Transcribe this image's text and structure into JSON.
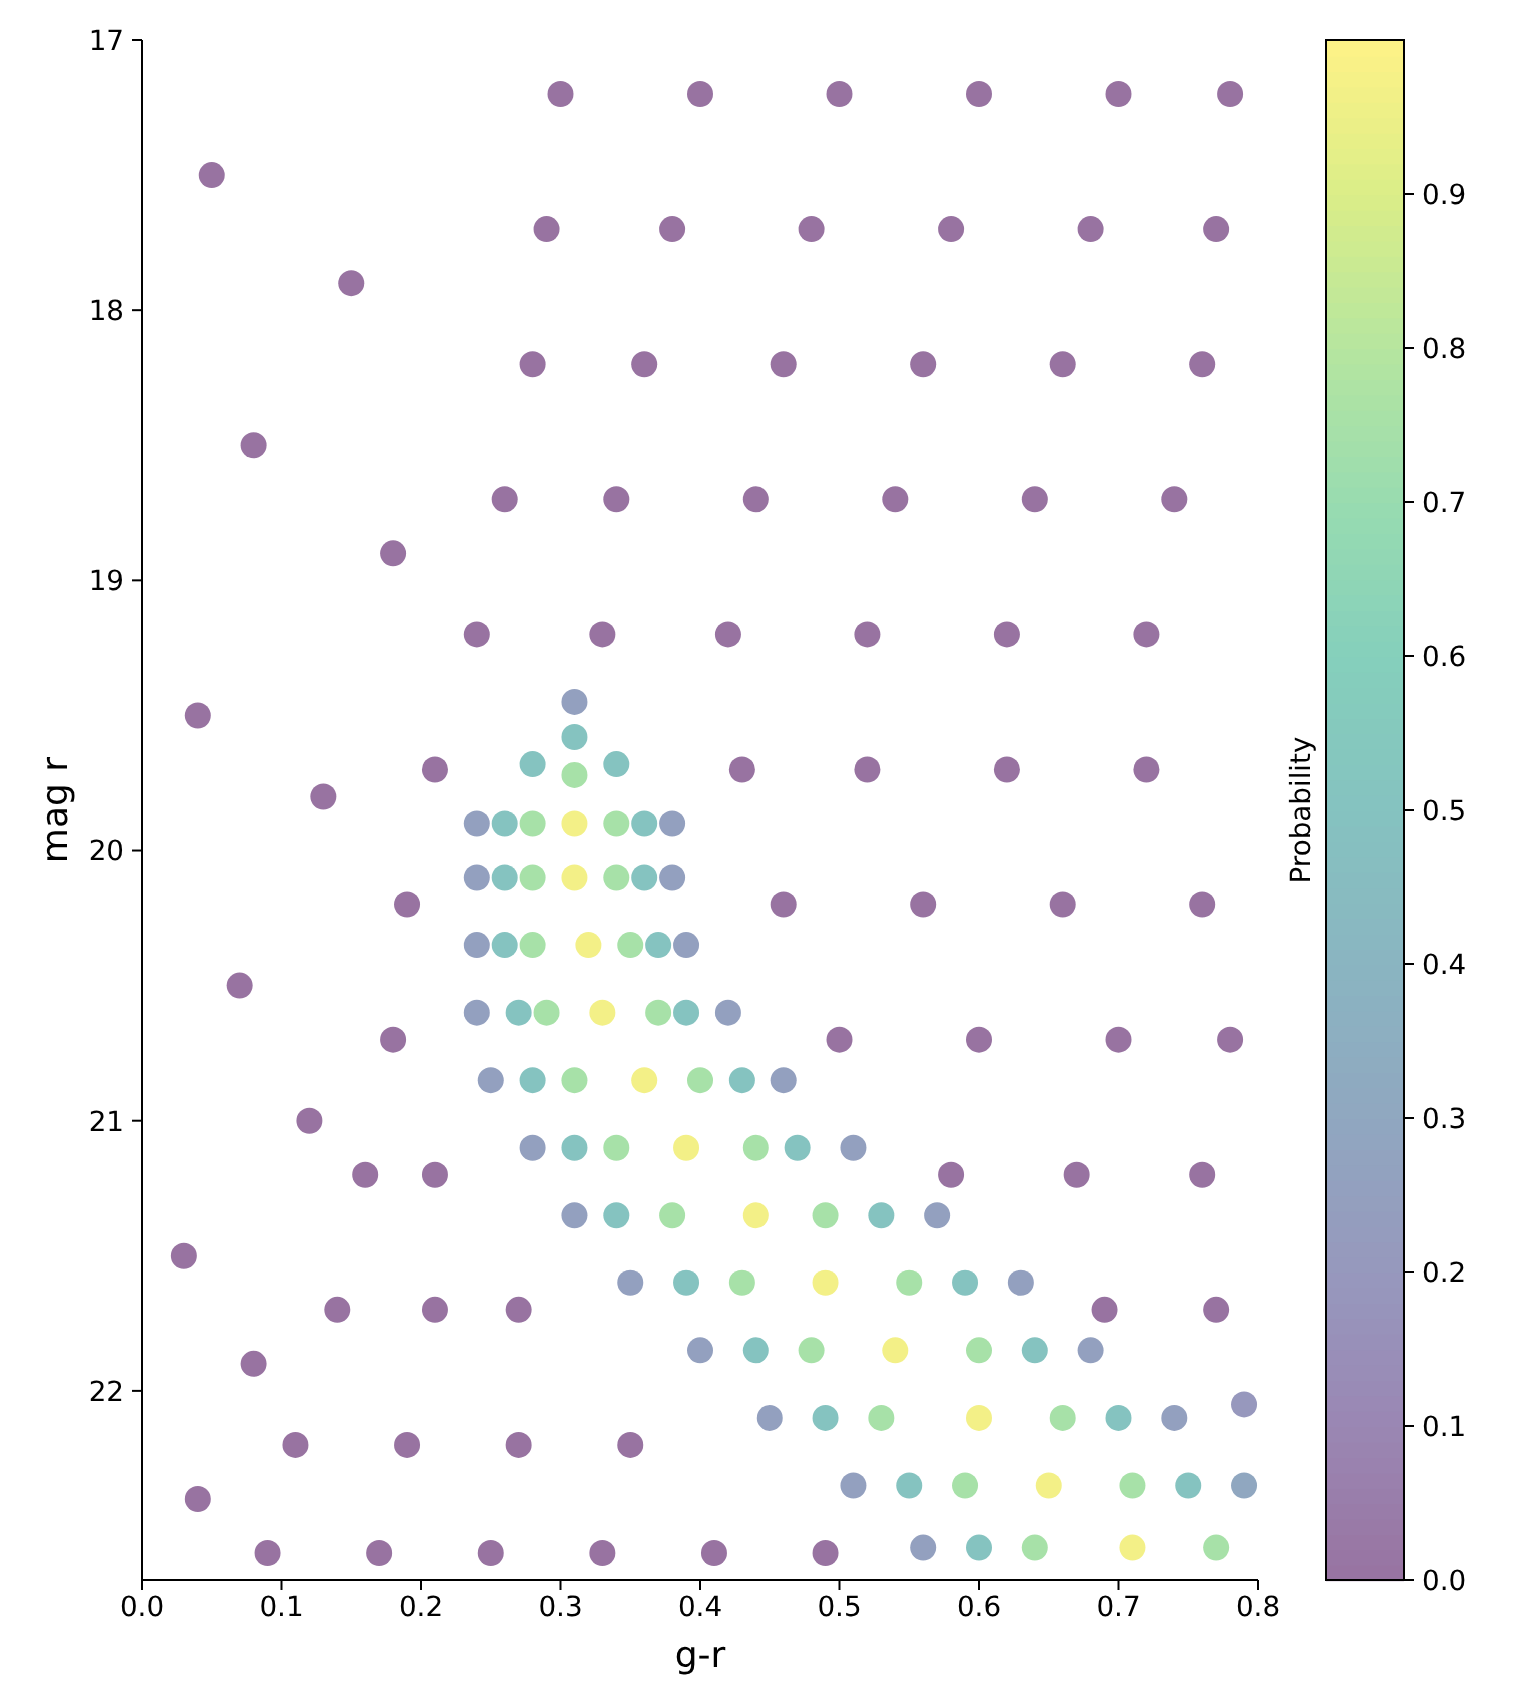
{
  "chart_data": {
    "type": "scatter",
    "xlabel": "g-r",
    "ylabel": "mag r",
    "clabel": "Probability",
    "marker": "circle",
    "x": [
      0.3,
      0.4,
      0.5,
      0.6,
      0.7,
      0.78,
      0.29,
      0.38,
      0.48,
      0.58,
      0.68,
      0.77,
      0.28,
      0.36,
      0.46,
      0.56,
      0.66,
      0.76,
      0.26,
      0.34,
      0.44,
      0.54,
      0.64,
      0.74,
      0.24,
      0.33,
      0.42,
      0.52,
      0.62,
      0.72,
      0.21,
      0.43,
      0.52,
      0.62,
      0.72,
      0.19,
      0.46,
      0.56,
      0.66,
      0.76,
      0.18,
      0.5,
      0.6,
      0.7,
      0.78,
      0.16,
      0.21,
      0.58,
      0.67,
      0.76,
      0.14,
      0.21,
      0.27,
      0.69,
      0.77,
      0.11,
      0.19,
      0.27,
      0.35,
      0.09,
      0.17,
      0.25,
      0.33,
      0.41,
      0.49,
      0.05,
      0.15,
      0.08,
      0.18,
      0.04,
      0.13,
      0.07,
      0.12,
      0.03,
      0.08,
      0.04,
      0.31,
      0.28,
      0.26,
      0.24,
      0.34,
      0.36,
      0.38,
      0.31,
      0.31,
      0.31,
      0.28,
      0.34,
      0.31,
      0.28,
      0.26,
      0.24,
      0.34,
      0.36,
      0.38,
      0.32,
      0.28,
      0.26,
      0.24,
      0.35,
      0.37,
      0.39,
      0.33,
      0.29,
      0.27,
      0.24,
      0.37,
      0.39,
      0.42,
      0.36,
      0.31,
      0.28,
      0.25,
      0.4,
      0.43,
      0.46,
      0.39,
      0.34,
      0.31,
      0.28,
      0.44,
      0.47,
      0.51,
      0.44,
      0.38,
      0.34,
      0.31,
      0.49,
      0.53,
      0.57,
      0.49,
      0.43,
      0.39,
      0.35,
      0.55,
      0.59,
      0.63,
      0.54,
      0.48,
      0.44,
      0.4,
      0.6,
      0.64,
      0.68,
      0.6,
      0.53,
      0.49,
      0.45,
      0.66,
      0.7,
      0.74,
      0.65,
      0.59,
      0.55,
      0.51,
      0.71,
      0.75,
      0.79,
      0.71,
      0.64,
      0.6,
      0.56,
      0.77,
      0.79
    ],
    "values": [
      17.2,
      17.2,
      17.2,
      17.2,
      17.2,
      17.2,
      17.7,
      17.7,
      17.7,
      17.7,
      17.7,
      17.7,
      18.2,
      18.2,
      18.2,
      18.2,
      18.2,
      18.2,
      18.7,
      18.7,
      18.7,
      18.7,
      18.7,
      18.7,
      19.2,
      19.2,
      19.2,
      19.2,
      19.2,
      19.2,
      19.7,
      19.7,
      19.7,
      19.7,
      19.7,
      20.2,
      20.2,
      20.2,
      20.2,
      20.2,
      20.7,
      20.7,
      20.7,
      20.7,
      20.7,
      21.2,
      21.2,
      21.2,
      21.2,
      21.2,
      21.7,
      21.7,
      21.7,
      21.7,
      21.7,
      22.2,
      22.2,
      22.2,
      22.2,
      22.6,
      22.6,
      22.6,
      22.6,
      22.6,
      22.6,
      17.5,
      17.9,
      18.5,
      18.9,
      19.5,
      19.8,
      20.5,
      21.0,
      21.5,
      21.9,
      22.4,
      19.9,
      19.9,
      19.9,
      19.9,
      19.9,
      19.9,
      19.9,
      19.72,
      19.58,
      19.45,
      19.68,
      19.68,
      20.1,
      20.1,
      20.1,
      20.1,
      20.1,
      20.1,
      20.1,
      20.35,
      20.35,
      20.35,
      20.35,
      20.35,
      20.35,
      20.35,
      20.6,
      20.6,
      20.6,
      20.6,
      20.6,
      20.6,
      20.6,
      20.85,
      20.85,
      20.85,
      20.85,
      20.85,
      20.85,
      20.85,
      21.1,
      21.1,
      21.1,
      21.1,
      21.1,
      21.1,
      21.1,
      21.35,
      21.35,
      21.35,
      21.35,
      21.35,
      21.35,
      21.35,
      21.6,
      21.6,
      21.6,
      21.6,
      21.6,
      21.6,
      21.6,
      21.85,
      21.85,
      21.85,
      21.85,
      21.85,
      21.85,
      21.85,
      22.1,
      22.1,
      22.1,
      22.1,
      22.1,
      22.1,
      22.1,
      22.35,
      22.35,
      22.35,
      22.35,
      22.35,
      22.35,
      22.35,
      22.58,
      22.58,
      22.58,
      22.58,
      22.58,
      22.05
    ],
    "cvalues": [
      0,
      0,
      0,
      0,
      0,
      0,
      0,
      0,
      0,
      0,
      0,
      0,
      0,
      0,
      0,
      0,
      0,
      0,
      0,
      0,
      0,
      0,
      0,
      0,
      0,
      0,
      0,
      0,
      0,
      0,
      0,
      0,
      0,
      0,
      0,
      0,
      0,
      0,
      0,
      0,
      0,
      0,
      0,
      0,
      0,
      0,
      0,
      0,
      0,
      0,
      0,
      0,
      0,
      0,
      0,
      0,
      0,
      0,
      0,
      0,
      0,
      0,
      0,
      0,
      0,
      0,
      0,
      0,
      0,
      0,
      0,
      0,
      0,
      0,
      0,
      0,
      0.97,
      0.75,
      0.5,
      0.25,
      0.75,
      0.5,
      0.25,
      0.75,
      0.5,
      0.25,
      0.5,
      0.5,
      0.97,
      0.75,
      0.5,
      0.25,
      0.75,
      0.5,
      0.25,
      0.97,
      0.75,
      0.5,
      0.25,
      0.75,
      0.5,
      0.25,
      0.97,
      0.75,
      0.5,
      0.25,
      0.75,
      0.5,
      0.25,
      0.97,
      0.75,
      0.5,
      0.25,
      0.75,
      0.5,
      0.25,
      0.97,
      0.75,
      0.5,
      0.25,
      0.75,
      0.5,
      0.25,
      0.97,
      0.75,
      0.5,
      0.25,
      0.75,
      0.5,
      0.25,
      0.97,
      0.75,
      0.5,
      0.25,
      0.75,
      0.5,
      0.25,
      0.97,
      0.75,
      0.5,
      0.25,
      0.75,
      0.5,
      0.25,
      0.97,
      0.75,
      0.5,
      0.25,
      0.75,
      0.5,
      0.25,
      0.97,
      0.75,
      0.5,
      0.25,
      0.75,
      0.5,
      0.3,
      0.97,
      0.75,
      0.5,
      0.25,
      0.75,
      0.2
    ],
    "xlim": [
      0,
      0.8
    ],
    "xticks": [
      {
        "value": 0,
        "label": "0.0"
      },
      0.1,
      0.2,
      0.3,
      0.4,
      0.5,
      0.6,
      0.7,
      0.8
    ],
    "ylim": [
      22.7,
      17
    ],
    "yticks": [
      17,
      18,
      19,
      20,
      21,
      22
    ],
    "clim": [
      0,
      1
    ],
    "cticks": [
      {
        "value": 0,
        "label": "0.0"
      },
      0.1,
      0.2,
      0.3,
      0.4,
      0.5,
      0.6,
      0.7,
      0.8,
      0.9
    ]
  }
}
